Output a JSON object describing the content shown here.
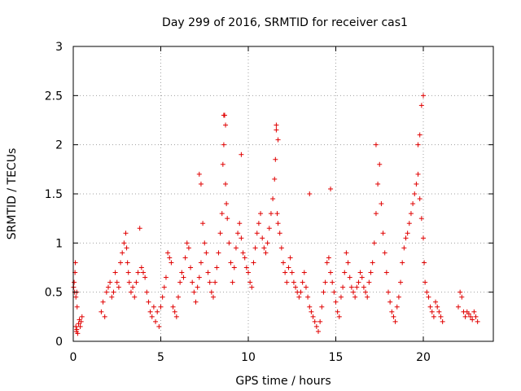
{
  "chart_data": {
    "type": "scatter",
    "title": "Day 299 of 2016, SRMTID for receiver cas1",
    "xlabel": "GPS time / hours",
    "ylabel": "SRMTID / TECUs",
    "xlim": [
      0,
      24
    ],
    "ylim": [
      0,
      3
    ],
    "x_ticks": [
      "0",
      "5",
      "10",
      "15",
      "20"
    ],
    "x_tick_values": [
      0,
      5,
      10,
      15,
      20
    ],
    "y_ticks": [
      "0",
      "0.5",
      "1",
      "1.5",
      "2",
      "2.5",
      "3"
    ],
    "y_tick_values": [
      0,
      0.5,
      1,
      1.5,
      2,
      2.5,
      3
    ],
    "grid": true,
    "marker": "+",
    "marker_color": "#e00000",
    "series": [
      {
        "name": "cas1",
        "x": [
          0.02,
          0.05,
          0.08,
          0.1,
          0.12,
          0.15,
          0.18,
          0.2,
          0.25,
          0.3,
          0.35,
          0.4,
          0.45,
          0.5,
          0.15,
          0.2,
          0.22,
          1.6,
          1.7,
          1.8,
          1.9,
          2.0,
          2.1,
          2.2,
          2.3,
          2.4,
          2.5,
          2.6,
          2.7,
          2.8,
          2.9,
          3.0,
          3.05,
          3.1,
          3.15,
          3.2,
          3.3,
          3.4,
          3.5,
          3.6,
          3.7,
          3.8,
          3.9,
          4.0,
          4.1,
          4.2,
          4.3,
          4.4,
          4.5,
          4.6,
          4.7,
          4.8,
          4.9,
          5.0,
          5.1,
          5.2,
          5.3,
          5.4,
          5.5,
          5.6,
          5.7,
          5.8,
          5.9,
          6.0,
          6.1,
          6.2,
          6.3,
          6.4,
          6.5,
          6.6,
          6.7,
          6.8,
          6.9,
          7.0,
          7.1,
          7.2,
          7.3,
          7.4,
          7.5,
          7.6,
          7.7,
          7.8,
          7.9,
          8.0,
          8.1,
          8.2,
          8.3,
          8.4,
          8.5,
          8.55,
          8.6,
          8.65,
          8.7,
          8.75,
          8.8,
          8.9,
          9.0,
          9.1,
          9.2,
          9.3,
          9.4,
          9.5,
          9.6,
          9.7,
          9.8,
          9.9,
          10.0,
          10.1,
          10.2,
          10.3,
          10.4,
          10.5,
          10.6,
          10.7,
          10.8,
          10.9,
          11.0,
          11.1,
          11.2,
          11.3,
          11.4,
          11.5,
          11.55,
          11.6,
          11.65,
          11.7,
          11.8,
          11.9,
          12.0,
          12.1,
          12.2,
          12.3,
          12.4,
          12.5,
          12.6,
          12.7,
          12.8,
          12.9,
          13.0,
          13.1,
          13.2,
          13.3,
          13.4,
          13.5,
          13.6,
          13.7,
          13.8,
          13.9,
          14.0,
          14.1,
          14.2,
          14.3,
          14.4,
          14.5,
          14.6,
          14.7,
          14.8,
          14.9,
          15.0,
          15.1,
          15.2,
          15.3,
          15.4,
          15.5,
          15.6,
          15.7,
          15.8,
          15.9,
          16.0,
          16.1,
          16.2,
          16.3,
          16.4,
          16.5,
          16.6,
          16.7,
          16.8,
          16.9,
          17.0,
          17.1,
          17.2,
          17.3,
          17.4,
          17.5,
          17.6,
          17.7,
          17.8,
          17.9,
          18.0,
          18.1,
          18.2,
          18.3,
          18.4,
          18.5,
          18.6,
          18.7,
          18.8,
          18.9,
          19.0,
          19.1,
          19.2,
          19.3,
          19.4,
          19.5,
          19.6,
          19.7,
          19.8,
          19.9,
          20.0,
          20.05,
          20.1,
          20.2,
          20.3,
          20.4,
          20.5,
          20.6,
          20.7,
          20.8,
          20.9,
          21.0,
          21.1,
          22.0,
          22.1,
          22.2,
          22.3,
          22.4,
          22.5,
          22.6,
          22.7,
          22.8,
          22.9,
          23.0,
          23.1,
          8.6,
          8.7,
          11.6,
          11.7,
          17.3,
          19.9,
          20.0,
          19.7,
          19.8,
          13.5,
          14.7,
          7.2,
          7.3,
          9.6
        ],
        "y": [
          0.55,
          0.6,
          0.5,
          0.7,
          0.8,
          0.15,
          0.1,
          0.12,
          0.08,
          0.18,
          0.22,
          0.15,
          0.2,
          0.25,
          0.45,
          0.5,
          0.35,
          0.3,
          0.4,
          0.25,
          0.5,
          0.55,
          0.6,
          0.45,
          0.5,
          0.7,
          0.6,
          0.55,
          0.8,
          0.9,
          1.0,
          1.1,
          0.95,
          0.8,
          0.7,
          0.6,
          0.5,
          0.55,
          0.45,
          0.6,
          0.7,
          1.15,
          0.75,
          0.7,
          0.65,
          0.5,
          0.4,
          0.3,
          0.25,
          0.35,
          0.2,
          0.3,
          0.15,
          0.35,
          0.45,
          0.55,
          0.65,
          0.9,
          0.85,
          0.8,
          0.35,
          0.3,
          0.25,
          0.45,
          0.6,
          0.7,
          0.65,
          0.85,
          1.0,
          0.95,
          0.75,
          0.6,
          0.5,
          0.4,
          0.55,
          0.65,
          0.8,
          1.2,
          1.0,
          0.9,
          0.7,
          0.6,
          0.5,
          0.45,
          0.6,
          0.75,
          0.9,
          1.1,
          1.3,
          1.8,
          2.0,
          2.3,
          1.6,
          1.4,
          1.25,
          1.0,
          0.8,
          0.6,
          0.75,
          0.95,
          1.1,
          1.2,
          1.05,
          0.9,
          0.85,
          0.75,
          0.7,
          0.6,
          0.55,
          0.8,
          0.95,
          1.1,
          1.2,
          1.3,
          1.05,
          0.95,
          0.9,
          1.0,
          1.15,
          1.3,
          1.45,
          1.65,
          1.85,
          2.15,
          1.3,
          1.2,
          1.1,
          0.95,
          0.8,
          0.7,
          0.6,
          0.75,
          0.85,
          0.7,
          0.6,
          0.55,
          0.5,
          0.45,
          0.5,
          0.6,
          0.7,
          0.55,
          0.45,
          0.35,
          0.3,
          0.25,
          0.2,
          0.15,
          0.1,
          0.2,
          0.35,
          0.5,
          0.6,
          0.8,
          0.85,
          0.7,
          0.6,
          0.5,
          0.4,
          0.3,
          0.25,
          0.45,
          0.55,
          0.7,
          0.9,
          0.8,
          0.65,
          0.55,
          0.5,
          0.45,
          0.55,
          0.6,
          0.7,
          0.65,
          0.55,
          0.5,
          0.45,
          0.6,
          0.7,
          0.8,
          1.0,
          1.3,
          1.6,
          1.8,
          1.4,
          1.1,
          0.9,
          0.7,
          0.5,
          0.4,
          0.3,
          0.25,
          0.2,
          0.35,
          0.45,
          0.6,
          0.8,
          0.95,
          1.05,
          1.1,
          1.2,
          1.3,
          1.4,
          1.5,
          1.6,
          1.7,
          1.45,
          1.25,
          1.05,
          0.8,
          0.6,
          0.5,
          0.45,
          0.35,
          0.3,
          0.25,
          0.4,
          0.35,
          0.3,
          0.25,
          0.2,
          0.35,
          0.5,
          0.45,
          0.3,
          0.25,
          0.3,
          0.28,
          0.25,
          0.22,
          0.3,
          0.25,
          0.2,
          2.3,
          2.2,
          2.2,
          2.05,
          2.0,
          2.4,
          2.5,
          2.0,
          2.1,
          1.5,
          1.55,
          1.7,
          1.6,
          1.9
        ]
      }
    ]
  }
}
